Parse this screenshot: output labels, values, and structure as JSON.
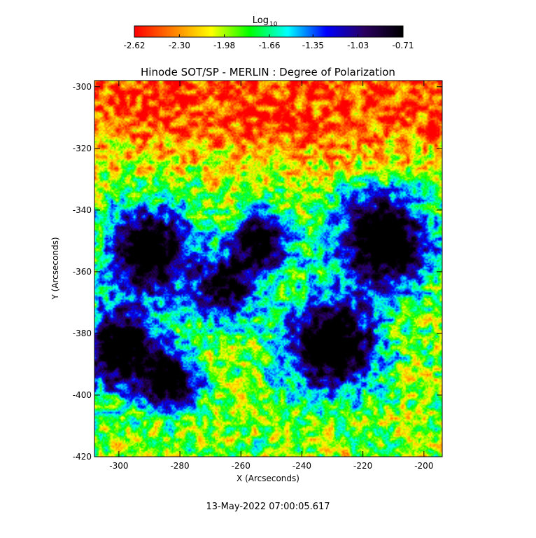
{
  "chart_data": {
    "type": "heatmap",
    "title": "Hinode SOT/SP - MERLIN : Degree of Polarization",
    "xlabel": "X (Arcseconds)",
    "ylabel": "Y (Arcseconds)",
    "xlim": [
      -308,
      -194
    ],
    "ylim": [
      -420,
      -298
    ],
    "x_ticks": [
      "-300",
      "-280",
      "-260",
      "-240",
      "-220",
      "-200"
    ],
    "x_tick_values": [
      -300,
      -280,
      -260,
      -240,
      -220,
      -200
    ],
    "y_ticks": [
      "-300",
      "-320",
      "-340",
      "-360",
      "-380",
      "-400",
      "-420"
    ],
    "y_tick_values": [
      -300,
      -320,
      -340,
      -360,
      -380,
      -400,
      -420
    ],
    "colorbar": {
      "label_base": "Log",
      "label_sub": "10",
      "range": [
        -2.62,
        -0.71
      ],
      "ticks": [
        "-2.62",
        "-2.30",
        "-1.98",
        "-1.66",
        "-1.35",
        "-1.03",
        "-0.71"
      ],
      "tick_values": [
        -2.62,
        -2.3,
        -1.98,
        -1.66,
        -1.35,
        -1.03,
        -0.71
      ],
      "colormap": [
        "#ff0000",
        "#ff8000",
        "#ffff00",
        "#00ff00",
        "#00ffff",
        "#0000ff",
        "#2a0060",
        "#000000"
      ]
    },
    "features": [
      {
        "x": -290,
        "y": -353,
        "radius": 9,
        "value": -0.85
      },
      {
        "x": -253,
        "y": -350,
        "radius": 6,
        "value": -0.95
      },
      {
        "x": -213,
        "y": -350,
        "radius": 10,
        "value": -0.78
      },
      {
        "x": -230,
        "y": -384,
        "radius": 10,
        "value": -0.82
      },
      {
        "x": -300,
        "y": -385,
        "radius": 9,
        "value": -0.9
      },
      {
        "x": -283,
        "y": -396,
        "radius": 6,
        "value": -0.95
      },
      {
        "x": -265,
        "y": -365,
        "radius": 7,
        "value": -1.1
      }
    ],
    "background_level": -2.45,
    "colormap_name": "rainbow (red = low, black = high)"
  },
  "timestamp": "13-May-2022 07:00:05.617"
}
